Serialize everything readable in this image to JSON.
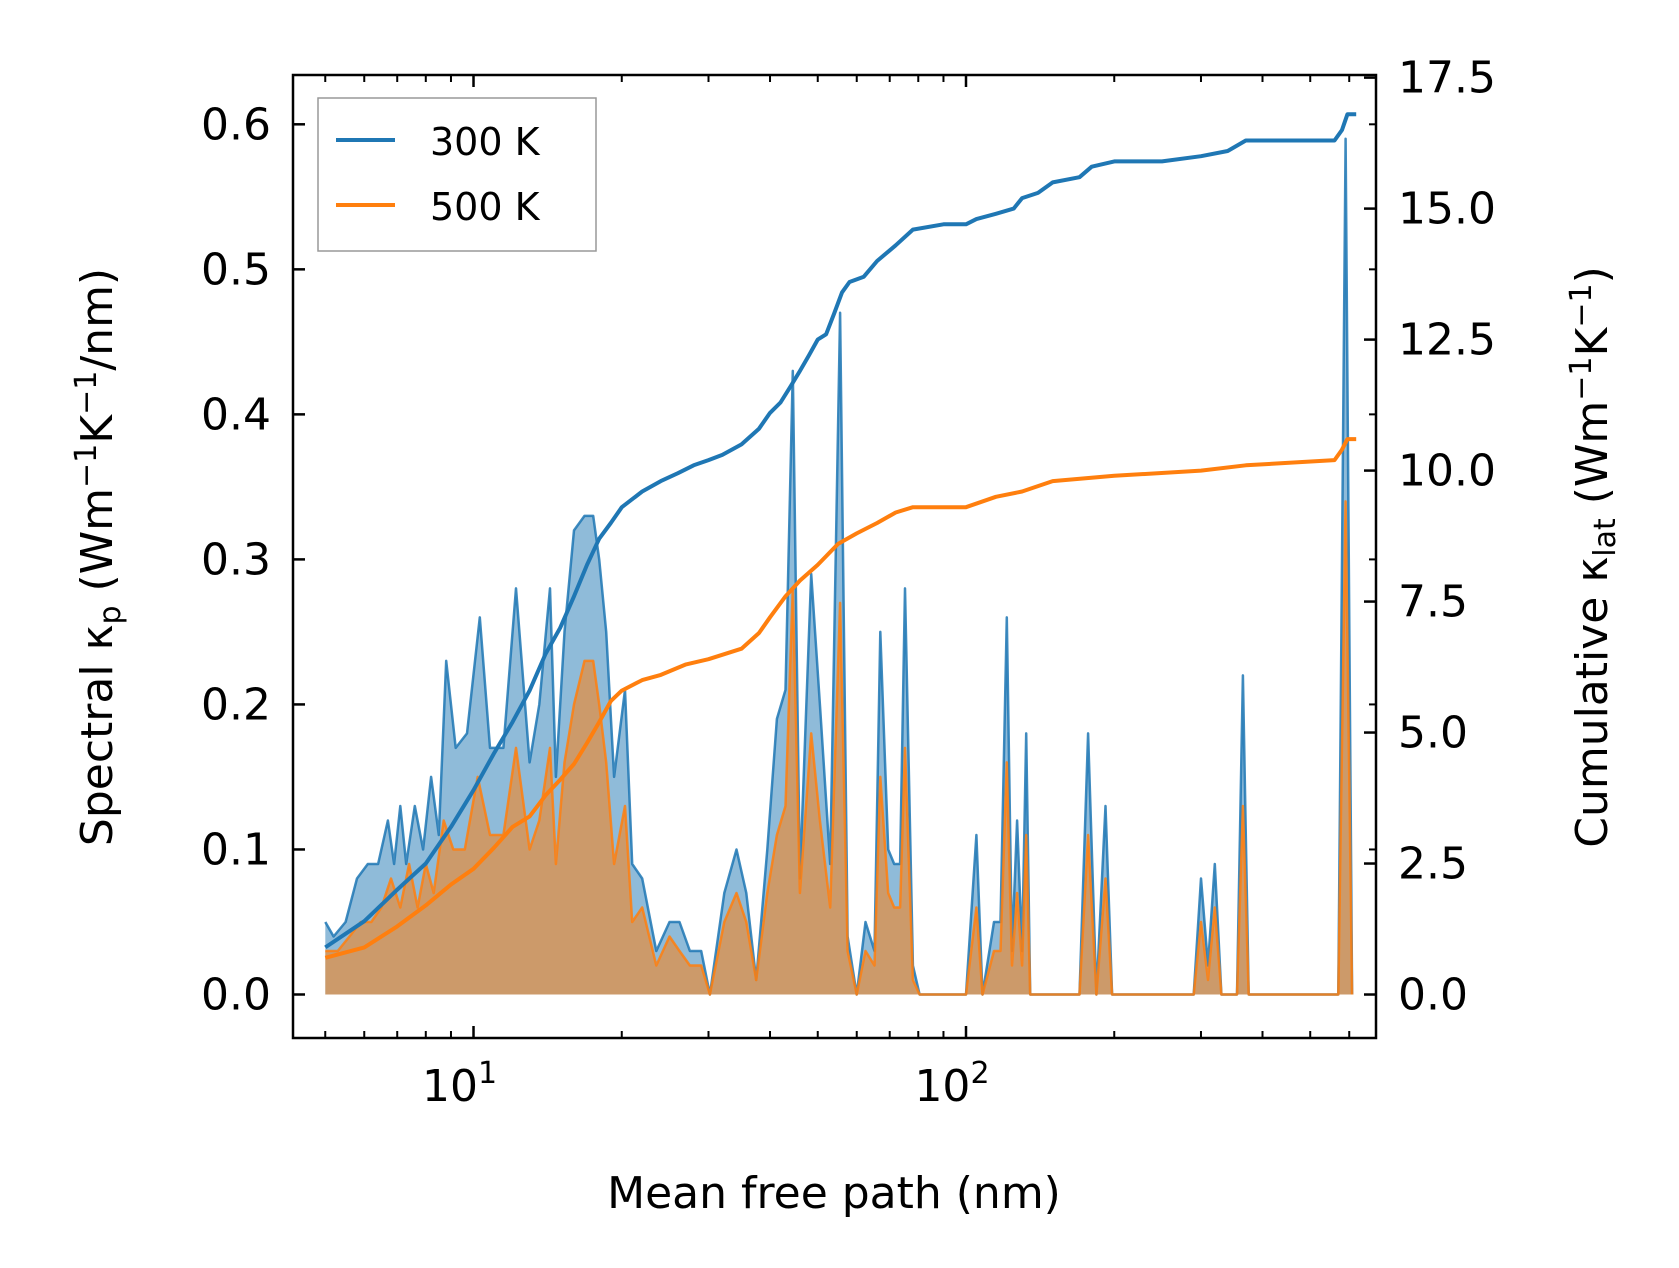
{
  "chart_data": {
    "type": "area-line",
    "xlabel": "Mean free path (nm)",
    "ylabel_left": {
      "main": "Spectral κ",
      "sub": "p",
      "unit_open": " (Wm",
      "sup1": "−1",
      "mid": "K",
      "sup2": "−1",
      "unit_close": "/nm)"
    },
    "ylabel_right": {
      "main": "Cumulative κ",
      "sub": "lat",
      "unit_open": " (Wm",
      "sup1": "−1",
      "mid": "K",
      "sup2": "−1",
      "unit_close": ")"
    },
    "xscale": "log",
    "xlim": [
      4.3,
      680
    ],
    "ylim_left": [
      -0.03,
      0.634
    ],
    "ylim_right": [
      -0.83,
      17.55
    ],
    "x_ticks": [
      {
        "value": 10,
        "base": "10",
        "exp": "1"
      },
      {
        "value": 100,
        "base": "10",
        "exp": "2"
      }
    ],
    "y_ticks_left": [
      "0.0",
      "0.1",
      "0.2",
      "0.3",
      "0.4",
      "0.5",
      "0.6"
    ],
    "y_ticks_right": [
      "0.0",
      "2.5",
      "5.0",
      "7.5",
      "10.0",
      "12.5",
      "15.0",
      "17.5"
    ],
    "legend": {
      "position": "top-left",
      "entries": [
        {
          "label": "300 K",
          "color": "#1f77b4"
        },
        {
          "label": "500 K",
          "color": "#ff7f0e"
        }
      ]
    },
    "spectral": [
      {
        "name": "300 K",
        "color": "#1f77b4",
        "points": [
          [
            5.0,
            0.05
          ],
          [
            5.2,
            0.04
          ],
          [
            5.5,
            0.05
          ],
          [
            5.8,
            0.08
          ],
          [
            6.1,
            0.09
          ],
          [
            6.4,
            0.09
          ],
          [
            6.7,
            0.12
          ],
          [
            6.9,
            0.09
          ],
          [
            7.1,
            0.13
          ],
          [
            7.3,
            0.09
          ],
          [
            7.6,
            0.13
          ],
          [
            7.9,
            0.1
          ],
          [
            8.2,
            0.15
          ],
          [
            8.5,
            0.11
          ],
          [
            8.8,
            0.23
          ],
          [
            9.2,
            0.17
          ],
          [
            9.7,
            0.18
          ],
          [
            10.3,
            0.26
          ],
          [
            10.8,
            0.17
          ],
          [
            11.5,
            0.17
          ],
          [
            12.2,
            0.28
          ],
          [
            13.0,
            0.16
          ],
          [
            13.6,
            0.2
          ],
          [
            14.3,
            0.28
          ],
          [
            14.7,
            0.15
          ],
          [
            15.3,
            0.25
          ],
          [
            16.0,
            0.32
          ],
          [
            16.8,
            0.33
          ],
          [
            17.5,
            0.33
          ],
          [
            18.0,
            0.3
          ],
          [
            18.6,
            0.25
          ],
          [
            19.3,
            0.15
          ],
          [
            20.3,
            0.21
          ],
          [
            21.0,
            0.09
          ],
          [
            22.0,
            0.08
          ],
          [
            23.5,
            0.03
          ],
          [
            25.0,
            0.05
          ],
          [
            26.2,
            0.05
          ],
          [
            27.5,
            0.03
          ],
          [
            29.0,
            0.03
          ],
          [
            30.2,
            0.0
          ],
          [
            32.3,
            0.07
          ],
          [
            34.2,
            0.1
          ],
          [
            35.8,
            0.07
          ],
          [
            37.5,
            0.01
          ],
          [
            39.5,
            0.1
          ],
          [
            41.3,
            0.19
          ],
          [
            43.0,
            0.21
          ],
          [
            44.5,
            0.43
          ],
          [
            46.0,
            0.08
          ],
          [
            48.5,
            0.29
          ],
          [
            50.5,
            0.2
          ],
          [
            53.0,
            0.09
          ],
          [
            55.5,
            0.47
          ],
          [
            57.5,
            0.04
          ],
          [
            60.0,
            0.0
          ],
          [
            62.5,
            0.05
          ],
          [
            65.2,
            0.03
          ],
          [
            67.0,
            0.25
          ],
          [
            69.5,
            0.1
          ],
          [
            71.5,
            0.09
          ],
          [
            73.5,
            0.09
          ],
          [
            75.2,
            0.28
          ],
          [
            78.0,
            0.02
          ],
          [
            80.5,
            0.0
          ],
          [
            100.0,
            0.0
          ],
          [
            105.0,
            0.11
          ],
          [
            108.0,
            0.0
          ],
          [
            114.0,
            0.05
          ],
          [
            117.5,
            0.05
          ],
          [
            121.0,
            0.26
          ],
          [
            124.0,
            0.03
          ],
          [
            127.0,
            0.12
          ],
          [
            130.0,
            0.03
          ],
          [
            132.5,
            0.18
          ],
          [
            135.0,
            0.0
          ],
          [
            170.0,
            0.0
          ],
          [
            177.0,
            0.18
          ],
          [
            184.0,
            0.0
          ],
          [
            192.0,
            0.13
          ],
          [
            198.0,
            0.0
          ],
          [
            290.0,
            0.0
          ],
          [
            300.0,
            0.08
          ],
          [
            310.0,
            0.02
          ],
          [
            320.0,
            0.09
          ],
          [
            330.0,
            0.0
          ],
          [
            355.0,
            0.0
          ],
          [
            365.0,
            0.22
          ],
          [
            375.0,
            0.0
          ],
          [
            570.0,
            0.0
          ],
          [
            590.0,
            0.59
          ],
          [
            608.0,
            0.0
          ]
        ]
      },
      {
        "name": "500 K",
        "color": "#ff7f0e",
        "points": [
          [
            5.0,
            0.03
          ],
          [
            5.3,
            0.03
          ],
          [
            5.6,
            0.04
          ],
          [
            5.9,
            0.05
          ],
          [
            6.2,
            0.05
          ],
          [
            6.5,
            0.06
          ],
          [
            6.8,
            0.08
          ],
          [
            7.1,
            0.06
          ],
          [
            7.4,
            0.09
          ],
          [
            7.7,
            0.06
          ],
          [
            8.0,
            0.09
          ],
          [
            8.3,
            0.07
          ],
          [
            8.7,
            0.12
          ],
          [
            9.1,
            0.1
          ],
          [
            9.6,
            0.1
          ],
          [
            10.2,
            0.15
          ],
          [
            10.8,
            0.11
          ],
          [
            11.5,
            0.11
          ],
          [
            12.2,
            0.17
          ],
          [
            13.0,
            0.1
          ],
          [
            13.6,
            0.12
          ],
          [
            14.3,
            0.17
          ],
          [
            14.7,
            0.09
          ],
          [
            15.3,
            0.16
          ],
          [
            16.0,
            0.2
          ],
          [
            16.8,
            0.23
          ],
          [
            17.5,
            0.23
          ],
          [
            18.0,
            0.2
          ],
          [
            18.6,
            0.16
          ],
          [
            19.3,
            0.09
          ],
          [
            20.3,
            0.13
          ],
          [
            21.0,
            0.05
          ],
          [
            22.0,
            0.06
          ],
          [
            23.5,
            0.02
          ],
          [
            25.0,
            0.04
          ],
          [
            26.2,
            0.03
          ],
          [
            27.5,
            0.02
          ],
          [
            29.0,
            0.02
          ],
          [
            30.2,
            0.0
          ],
          [
            32.3,
            0.05
          ],
          [
            34.2,
            0.07
          ],
          [
            35.8,
            0.05
          ],
          [
            37.5,
            0.01
          ],
          [
            39.5,
            0.07
          ],
          [
            41.3,
            0.11
          ],
          [
            43.0,
            0.13
          ],
          [
            44.5,
            0.28
          ],
          [
            46.0,
            0.07
          ],
          [
            48.5,
            0.18
          ],
          [
            50.5,
            0.12
          ],
          [
            53.0,
            0.06
          ],
          [
            55.5,
            0.27
          ],
          [
            57.5,
            0.03
          ],
          [
            60.0,
            0.0
          ],
          [
            62.5,
            0.03
          ],
          [
            65.2,
            0.02
          ],
          [
            67.0,
            0.15
          ],
          [
            69.5,
            0.07
          ],
          [
            71.5,
            0.06
          ],
          [
            73.5,
            0.06
          ],
          [
            75.2,
            0.17
          ],
          [
            78.0,
            0.01
          ],
          [
            80.5,
            0.0
          ],
          [
            100.0,
            0.0
          ],
          [
            105.0,
            0.06
          ],
          [
            108.0,
            0.0
          ],
          [
            114.0,
            0.03
          ],
          [
            117.5,
            0.03
          ],
          [
            121.0,
            0.16
          ],
          [
            124.0,
            0.02
          ],
          [
            127.0,
            0.07
          ],
          [
            130.0,
            0.02
          ],
          [
            132.5,
            0.11
          ],
          [
            135.0,
            0.0
          ],
          [
            170.0,
            0.0
          ],
          [
            177.0,
            0.11
          ],
          [
            184.0,
            0.0
          ],
          [
            192.0,
            0.08
          ],
          [
            198.0,
            0.0
          ],
          [
            290.0,
            0.0
          ],
          [
            300.0,
            0.05
          ],
          [
            310.0,
            0.01
          ],
          [
            320.0,
            0.06
          ],
          [
            330.0,
            0.0
          ],
          [
            355.0,
            0.0
          ],
          [
            365.0,
            0.13
          ],
          [
            375.0,
            0.0
          ],
          [
            570.0,
            0.0
          ],
          [
            590.0,
            0.34
          ],
          [
            608.0,
            0.0
          ]
        ]
      }
    ],
    "cumulative": [
      {
        "name": "300 K",
        "color": "#1f77b4",
        "points": [
          [
            5.0,
            0.9
          ],
          [
            6.0,
            1.4
          ],
          [
            7.0,
            2.0
          ],
          [
            8.0,
            2.5
          ],
          [
            9.0,
            3.2
          ],
          [
            10.0,
            3.9
          ],
          [
            11.0,
            4.6
          ],
          [
            12.0,
            5.2
          ],
          [
            13.0,
            5.8
          ],
          [
            14.0,
            6.5
          ],
          [
            15.0,
            7.0
          ],
          [
            16.0,
            7.6
          ],
          [
            17.0,
            8.2
          ],
          [
            18.0,
            8.7
          ],
          [
            19.0,
            9.0
          ],
          [
            20.0,
            9.3
          ],
          [
            22.0,
            9.6
          ],
          [
            24.0,
            9.8
          ],
          [
            26.0,
            9.95
          ],
          [
            28.0,
            10.1
          ],
          [
            30.0,
            10.2
          ],
          [
            32.0,
            10.3
          ],
          [
            35.0,
            10.5
          ],
          [
            38.0,
            10.8
          ],
          [
            40.0,
            11.1
          ],
          [
            42.0,
            11.3
          ],
          [
            44.0,
            11.6
          ],
          [
            46.0,
            11.9
          ],
          [
            48.0,
            12.2
          ],
          [
            50.0,
            12.5
          ],
          [
            52.0,
            12.6
          ],
          [
            54.0,
            13.0
          ],
          [
            56.0,
            13.4
          ],
          [
            58.0,
            13.6
          ],
          [
            62.0,
            13.7
          ],
          [
            66.0,
            14.0
          ],
          [
            72.0,
            14.3
          ],
          [
            78.0,
            14.6
          ],
          [
            90.0,
            14.7
          ],
          [
            100.0,
            14.7
          ],
          [
            105.0,
            14.8
          ],
          [
            115.0,
            14.9
          ],
          [
            125.0,
            15.0
          ],
          [
            130.0,
            15.2
          ],
          [
            140.0,
            15.3
          ],
          [
            150.0,
            15.5
          ],
          [
            170.0,
            15.6
          ],
          [
            180.0,
            15.8
          ],
          [
            200.0,
            15.9
          ],
          [
            250.0,
            15.9
          ],
          [
            300.0,
            16.0
          ],
          [
            340.0,
            16.1
          ],
          [
            370.0,
            16.3
          ],
          [
            450.0,
            16.3
          ],
          [
            560.0,
            16.3
          ],
          [
            580.0,
            16.5
          ],
          [
            595.0,
            16.8
          ],
          [
            620.0,
            16.8
          ]
        ]
      },
      {
        "name": "500 K",
        "color": "#ff7f0e",
        "points": [
          [
            5.0,
            0.7
          ],
          [
            6.0,
            0.9
          ],
          [
            7.0,
            1.3
          ],
          [
            8.0,
            1.7
          ],
          [
            9.0,
            2.1
          ],
          [
            10.0,
            2.4
          ],
          [
            11.0,
            2.8
          ],
          [
            12.0,
            3.2
          ],
          [
            13.0,
            3.4
          ],
          [
            14.0,
            3.8
          ],
          [
            15.0,
            4.1
          ],
          [
            16.0,
            4.4
          ],
          [
            17.0,
            4.8
          ],
          [
            18.0,
            5.2
          ],
          [
            19.0,
            5.6
          ],
          [
            20.0,
            5.8
          ],
          [
            22.0,
            6.0
          ],
          [
            24.0,
            6.1
          ],
          [
            27.0,
            6.3
          ],
          [
            30.0,
            6.4
          ],
          [
            35.0,
            6.6
          ],
          [
            38.0,
            6.9
          ],
          [
            40.0,
            7.2
          ],
          [
            43.0,
            7.6
          ],
          [
            46.0,
            7.9
          ],
          [
            50.0,
            8.2
          ],
          [
            55.0,
            8.6
          ],
          [
            60.0,
            8.8
          ],
          [
            66.0,
            9.0
          ],
          [
            72.0,
            9.2
          ],
          [
            78.0,
            9.3
          ],
          [
            100.0,
            9.3
          ],
          [
            115.0,
            9.5
          ],
          [
            130.0,
            9.6
          ],
          [
            150.0,
            9.8
          ],
          [
            200.0,
            9.9
          ],
          [
            300.0,
            10.0
          ],
          [
            370.0,
            10.1
          ],
          [
            560.0,
            10.2
          ],
          [
            580.0,
            10.4
          ],
          [
            595.0,
            10.6
          ],
          [
            620.0,
            10.6
          ]
        ]
      }
    ]
  }
}
